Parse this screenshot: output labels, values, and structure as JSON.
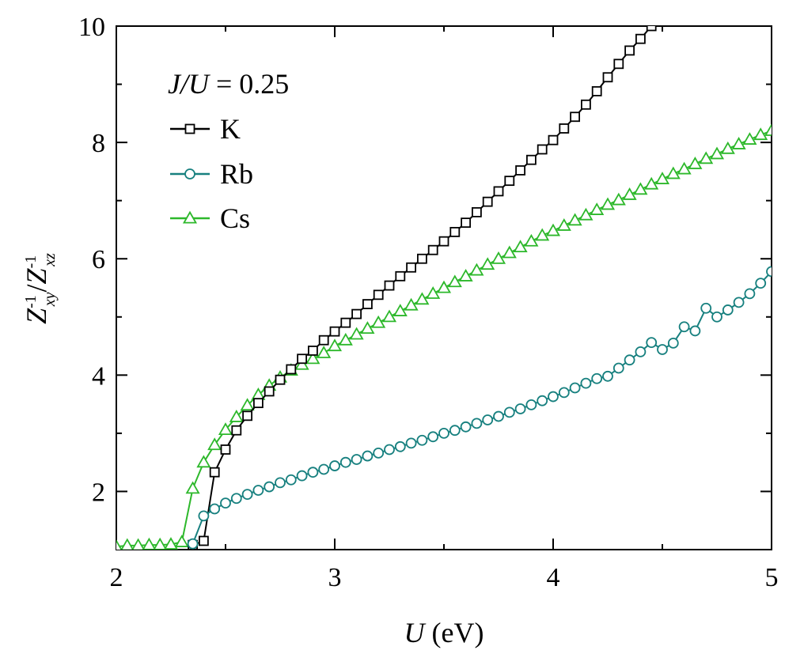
{
  "chart_data": {
    "type": "line",
    "annotation": {
      "prefix_italic": "J/U",
      "value_text": " = 0.25"
    },
    "xlabel": {
      "italic": "U",
      "rest": " (eV)"
    },
    "ylabel": {
      "text": "Z-1xy/Z-1xz",
      "num_base": "Z",
      "num_sup": "-1",
      "num_sub": "xy",
      "sep": "/",
      "den_base": "Z",
      "den_sup": "-1",
      "den_sub": "xz"
    },
    "xlim": [
      2,
      5
    ],
    "ylim": [
      1,
      10
    ],
    "xticks": [
      2,
      3,
      4,
      5
    ],
    "yticks": [
      2,
      4,
      6,
      8,
      10
    ],
    "xtick_labels": [
      "2",
      "3",
      "4",
      "5"
    ],
    "ytick_labels": [
      "2",
      "4",
      "6",
      "8",
      "10"
    ],
    "legend_position": "top-left",
    "series": [
      {
        "name": "K",
        "color": "#000000",
        "marker": "square",
        "x": [
          2.35,
          2.4,
          2.45,
          2.5,
          2.55,
          2.6,
          2.65,
          2.7,
          2.75,
          2.8,
          2.85,
          2.9,
          2.95,
          3.0,
          3.05,
          3.1,
          3.15,
          3.2,
          3.25,
          3.3,
          3.35,
          3.4,
          3.45,
          3.5,
          3.55,
          3.6,
          3.65,
          3.7,
          3.75,
          3.8,
          3.85,
          3.9,
          3.95,
          4.0,
          4.05,
          4.1,
          4.15,
          4.2,
          4.25,
          4.3,
          4.35,
          4.4,
          4.45
        ],
        "y": [
          1.08,
          1.15,
          2.33,
          2.72,
          3.05,
          3.3,
          3.52,
          3.72,
          3.92,
          4.1,
          4.28,
          4.42,
          4.6,
          4.75,
          4.9,
          5.05,
          5.22,
          5.38,
          5.54,
          5.7,
          5.85,
          6.0,
          6.15,
          6.3,
          6.46,
          6.62,
          6.8,
          6.98,
          7.16,
          7.34,
          7.52,
          7.7,
          7.88,
          8.04,
          8.24,
          8.44,
          8.65,
          8.88,
          9.12,
          9.35,
          9.58,
          9.78,
          10.0
        ]
      },
      {
        "name": "Rb",
        "color": "#17807f",
        "marker": "circle",
        "x": [
          2.35,
          2.4,
          2.45,
          2.5,
          2.55,
          2.6,
          2.65,
          2.7,
          2.75,
          2.8,
          2.85,
          2.9,
          2.95,
          3.0,
          3.05,
          3.1,
          3.15,
          3.2,
          3.25,
          3.3,
          3.35,
          3.4,
          3.45,
          3.5,
          3.55,
          3.6,
          3.65,
          3.7,
          3.75,
          3.8,
          3.85,
          3.9,
          3.95,
          4.0,
          4.05,
          4.1,
          4.15,
          4.2,
          4.25,
          4.3,
          4.35,
          4.4,
          4.45,
          4.5,
          4.55,
          4.6,
          4.65,
          4.7,
          4.75,
          4.8,
          4.85,
          4.9,
          4.95,
          5.0
        ],
        "y": [
          1.1,
          1.58,
          1.7,
          1.8,
          1.88,
          1.95,
          2.02,
          2.08,
          2.15,
          2.2,
          2.27,
          2.33,
          2.38,
          2.44,
          2.5,
          2.55,
          2.61,
          2.66,
          2.72,
          2.77,
          2.83,
          2.88,
          2.94,
          3.0,
          3.05,
          3.11,
          3.17,
          3.23,
          3.29,
          3.36,
          3.42,
          3.49,
          3.56,
          3.63,
          3.7,
          3.78,
          3.86,
          3.94,
          3.98,
          4.12,
          4.26,
          4.4,
          4.56,
          4.44,
          4.55,
          4.83,
          4.76,
          5.15,
          5.0,
          5.12,
          5.25,
          5.4,
          5.58,
          5.78
        ]
      },
      {
        "name": "Cs",
        "color": "#2db82b",
        "marker": "triangle",
        "x": [
          2.0,
          2.05,
          2.1,
          2.15,
          2.2,
          2.25,
          2.3,
          2.35,
          2.4,
          2.45,
          2.5,
          2.55,
          2.6,
          2.65,
          2.7,
          2.75,
          2.8,
          2.85,
          2.9,
          2.95,
          3.0,
          3.05,
          3.1,
          3.15,
          3.2,
          3.25,
          3.3,
          3.35,
          3.4,
          3.45,
          3.5,
          3.55,
          3.6,
          3.65,
          3.7,
          3.75,
          3.8,
          3.85,
          3.9,
          3.95,
          4.0,
          4.05,
          4.1,
          4.15,
          4.2,
          4.25,
          4.3,
          4.35,
          4.4,
          4.45,
          4.5,
          4.55,
          4.6,
          4.65,
          4.7,
          4.75,
          4.8,
          4.85,
          4.9,
          4.95,
          5.0
        ],
        "y": [
          1.05,
          1.07,
          1.07,
          1.08,
          1.08,
          1.09,
          1.13,
          2.05,
          2.5,
          2.8,
          3.06,
          3.28,
          3.48,
          3.66,
          3.82,
          3.96,
          4.08,
          4.18,
          4.28,
          4.38,
          4.5,
          4.6,
          4.7,
          4.8,
          4.9,
          5.0,
          5.1,
          5.2,
          5.3,
          5.4,
          5.5,
          5.6,
          5.7,
          5.8,
          5.9,
          6.0,
          6.1,
          6.2,
          6.3,
          6.4,
          6.48,
          6.57,
          6.66,
          6.75,
          6.84,
          6.93,
          7.01,
          7.1,
          7.19,
          7.28,
          7.37,
          7.46,
          7.54,
          7.63,
          7.72,
          7.8,
          7.89,
          7.97,
          8.05,
          8.13,
          8.2
        ]
      }
    ]
  }
}
